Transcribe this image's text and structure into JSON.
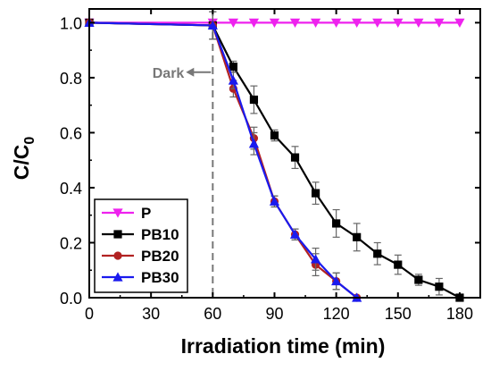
{
  "chart_data": {
    "type": "line",
    "xlabel": "Irradiation time (min)",
    "ylabel_main": "C/C",
    "ylabel_sub": "0",
    "xlim": [
      0,
      190
    ],
    "ylim": [
      0,
      1.05
    ],
    "xticks": [
      0,
      30,
      60,
      90,
      120,
      150,
      180
    ],
    "yticks": [
      0.0,
      0.2,
      0.4,
      0.6,
      0.8,
      1.0
    ],
    "xtick_labels": [
      "0",
      "30",
      "60",
      "90",
      "120",
      "150",
      "180"
    ],
    "ytick_labels": [
      "0.0",
      "0.2",
      "0.4",
      "0.6",
      "0.8",
      "1.0"
    ],
    "grid": false,
    "legend_position": "bottom-left",
    "annotation": {
      "text": "Dark",
      "x": 60,
      "y": 0.82
    },
    "dark_line_x": 60,
    "series": [
      {
        "name": "P",
        "color": "#ee22ee",
        "marker": "triangle-down",
        "x": [
          0,
          60,
          70,
          80,
          90,
          100,
          110,
          120,
          130,
          140,
          150,
          160,
          170,
          180
        ],
        "y": [
          1.0,
          1.0,
          1.0,
          1.0,
          1.0,
          1.0,
          1.0,
          1.0,
          1.0,
          1.0,
          1.0,
          1.0,
          1.0,
          1.0
        ],
        "err": [
          0,
          0,
          0,
          0,
          0,
          0,
          0,
          0,
          0,
          0,
          0,
          0,
          0,
          0
        ]
      },
      {
        "name": "PB10",
        "color": "#000000",
        "marker": "square",
        "x": [
          0,
          60,
          70,
          80,
          90,
          100,
          110,
          120,
          130,
          140,
          150,
          160,
          170,
          180
        ],
        "y": [
          1.0,
          0.99,
          0.84,
          0.72,
          0.59,
          0.51,
          0.38,
          0.27,
          0.22,
          0.16,
          0.12,
          0.065,
          0.04,
          0.0
        ],
        "err": [
          0,
          0.05,
          0.02,
          0.05,
          0.02,
          0.04,
          0.04,
          0.05,
          0.05,
          0.04,
          0.035,
          0.02,
          0.03,
          0.0
        ]
      },
      {
        "name": "PB20",
        "color": "#b22222",
        "marker": "circle",
        "x": [
          0,
          60,
          70,
          80,
          90,
          100,
          110,
          120,
          130
        ],
        "y": [
          1.0,
          0.99,
          0.76,
          0.58,
          0.35,
          0.23,
          0.12,
          0.06,
          0.0
        ],
        "err": [
          0,
          0.05,
          0.03,
          0.04,
          0.02,
          0.02,
          0.04,
          0.03,
          0.0
        ]
      },
      {
        "name": "PB30",
        "color": "#1a1aee",
        "marker": "triangle-up",
        "x": [
          0,
          60,
          70,
          80,
          90,
          100,
          110,
          120,
          130
        ],
        "y": [
          1.0,
          0.99,
          0.79,
          0.56,
          0.35,
          0.23,
          0.14,
          0.06,
          0.0
        ],
        "err": [
          0,
          0.05,
          0.03,
          0.04,
          0.02,
          0.02,
          0.04,
          0.03,
          0.0
        ]
      }
    ]
  }
}
